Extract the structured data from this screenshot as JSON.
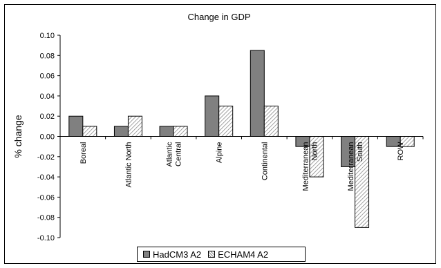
{
  "chart_data": {
    "type": "bar",
    "title": "Change in GDP",
    "xlabel": "",
    "ylabel": "% change",
    "ylim": [
      -0.1,
      0.1
    ],
    "yticks": [
      "0.10",
      "0.08",
      "0.06",
      "0.04",
      "0.02",
      "0.00",
      "-0.02",
      "-0.04",
      "-0.06",
      "-0.08",
      "-0.10"
    ],
    "ytick_values": [
      0.1,
      0.08,
      0.06,
      0.04,
      0.02,
      0.0,
      -0.02,
      -0.04,
      -0.06,
      -0.08,
      -0.1
    ],
    "grid": false,
    "legend_position": "bottom",
    "categories": [
      [
        "Boreal"
      ],
      [
        "Atlantic North"
      ],
      [
        "Atlantic",
        "Central"
      ],
      [
        "Alpine"
      ],
      [
        "Continental"
      ],
      [
        "Mediterranean",
        "North"
      ],
      [
        "Mediterranean",
        "South"
      ],
      [
        "ROW"
      ]
    ],
    "series": [
      {
        "name": "HadCM3 A2",
        "values": [
          0.02,
          0.01,
          0.01,
          0.04,
          0.085,
          -0.01,
          -0.03,
          -0.01
        ],
        "color": "#808080",
        "pattern": "solid"
      },
      {
        "name": "ECHAM4 A2",
        "values": [
          0.01,
          0.02,
          0.01,
          0.03,
          0.03,
          -0.04,
          -0.09,
          -0.01
        ],
        "color": "#c0c0c0",
        "pattern": "diagonal-hatch"
      }
    ]
  }
}
